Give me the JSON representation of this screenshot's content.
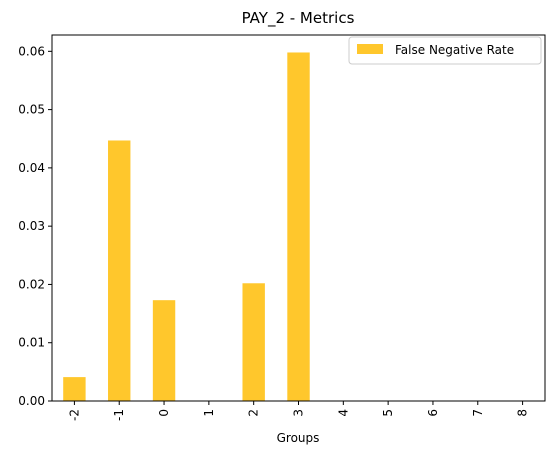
{
  "chart_data": {
    "type": "bar",
    "title": "PAY_2 - Metrics",
    "xlabel": "Groups",
    "ylabel": "",
    "categories": [
      "-2",
      "-1",
      "0",
      "1",
      "2",
      "3",
      "4",
      "5",
      "6",
      "7",
      "8"
    ],
    "series": [
      {
        "name": "False Negative Rate",
        "values": [
          0.0041,
          0.0447,
          0.0173,
          0.0,
          0.0202,
          0.0598,
          0.0,
          0.0,
          0.0,
          0.0,
          0.0
        ],
        "color": "#ffc72c"
      }
    ],
    "ylim": [
      0,
      0.0628
    ],
    "yticks": [
      "0.00",
      "0.01",
      "0.02",
      "0.03",
      "0.04",
      "0.05",
      "0.06"
    ],
    "legend_position": "top-right",
    "grid": false
  }
}
